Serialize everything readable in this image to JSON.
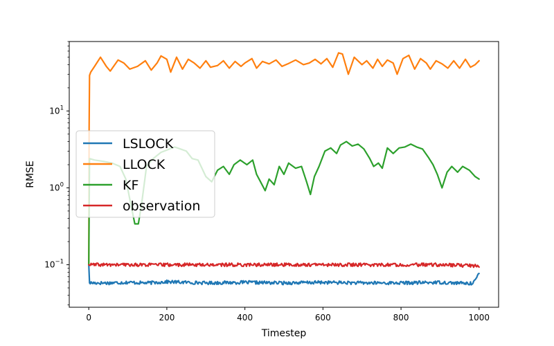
{
  "chart_data": {
    "type": "line",
    "title": "",
    "xlabel": "Timestep",
    "ylabel": "RMSE",
    "yscale": "log",
    "xlim": [
      -50,
      1050
    ],
    "ylim": [
      0.028,
      80
    ],
    "grid": false,
    "legend_position": "center-left",
    "x_ticks": [
      0,
      200,
      400,
      600,
      800,
      1000
    ],
    "x_tick_labels": [
      "0",
      "200",
      "400",
      "600",
      "800",
      "1000"
    ],
    "y_ticks": [
      {
        "value": 0.1,
        "base": "10",
        "exp": "−1"
      },
      {
        "value": 1,
        "base": "10",
        "exp": "0"
      },
      {
        "value": 10,
        "base": "10",
        "exp": "1"
      }
    ],
    "series": [
      {
        "name": "LSLOCK",
        "color": "#1f77b4",
        "points": [
          [
            0,
            0.1
          ],
          [
            2,
            0.058
          ],
          [
            50,
            0.058
          ],
          [
            100,
            0.059
          ],
          [
            150,
            0.058
          ],
          [
            200,
            0.06
          ],
          [
            300,
            0.058
          ],
          [
            400,
            0.059
          ],
          [
            500,
            0.058
          ],
          [
            600,
            0.059
          ],
          [
            700,
            0.058
          ],
          [
            800,
            0.058
          ],
          [
            900,
            0.059
          ],
          [
            980,
            0.057
          ],
          [
            992,
            0.065
          ],
          [
            1000,
            0.076
          ]
        ]
      },
      {
        "name": "LLOCK",
        "color": "#ff7f0e",
        "points": [
          [
            0,
            0.1
          ],
          [
            1,
            6
          ],
          [
            2,
            29
          ],
          [
            5,
            32
          ],
          [
            15,
            38
          ],
          [
            30,
            50
          ],
          [
            45,
            38
          ],
          [
            55,
            33
          ],
          [
            75,
            46
          ],
          [
            90,
            42
          ],
          [
            105,
            35
          ],
          [
            125,
            38
          ],
          [
            145,
            45
          ],
          [
            160,
            34
          ],
          [
            175,
            42
          ],
          [
            185,
            52
          ],
          [
            200,
            47
          ],
          [
            210,
            32
          ],
          [
            225,
            50
          ],
          [
            240,
            35
          ],
          [
            255,
            47
          ],
          [
            270,
            42
          ],
          [
            285,
            36
          ],
          [
            300,
            45
          ],
          [
            312,
            37
          ],
          [
            330,
            39
          ],
          [
            345,
            45
          ],
          [
            360,
            36
          ],
          [
            375,
            44
          ],
          [
            390,
            38
          ],
          [
            400,
            42
          ],
          [
            418,
            48
          ],
          [
            430,
            36
          ],
          [
            445,
            44
          ],
          [
            462,
            41
          ],
          [
            480,
            46
          ],
          [
            495,
            38
          ],
          [
            510,
            41
          ],
          [
            530,
            46
          ],
          [
            550,
            40
          ],
          [
            565,
            42
          ],
          [
            580,
            47
          ],
          [
            595,
            41
          ],
          [
            610,
            48
          ],
          [
            625,
            37
          ],
          [
            640,
            57
          ],
          [
            650,
            55
          ],
          [
            665,
            30
          ],
          [
            680,
            50
          ],
          [
            700,
            40
          ],
          [
            712,
            45
          ],
          [
            728,
            36
          ],
          [
            740,
            47
          ],
          [
            752,
            38
          ],
          [
            765,
            46
          ],
          [
            780,
            42
          ],
          [
            790,
            30
          ],
          [
            805,
            48
          ],
          [
            820,
            53
          ],
          [
            835,
            35
          ],
          [
            850,
            48
          ],
          [
            865,
            42
          ],
          [
            875,
            35
          ],
          [
            890,
            45
          ],
          [
            905,
            41
          ],
          [
            920,
            36
          ],
          [
            935,
            45
          ],
          [
            950,
            36
          ],
          [
            965,
            47
          ],
          [
            978,
            37
          ],
          [
            990,
            40
          ],
          [
            1000,
            45
          ]
        ]
      },
      {
        "name": "KF",
        "color": "#2ca02c",
        "points": [
          [
            0,
            0.1
          ],
          [
            2,
            2.4
          ],
          [
            15,
            2.3
          ],
          [
            40,
            2.2
          ],
          [
            60,
            2.1
          ],
          [
            80,
            1.9
          ],
          [
            95,
            1.3
          ],
          [
            108,
            0.6
          ],
          [
            118,
            0.34
          ],
          [
            127,
            0.34
          ],
          [
            135,
            0.6
          ],
          [
            148,
            1.9
          ],
          [
            165,
            2.4
          ],
          [
            185,
            2.9
          ],
          [
            200,
            3.1
          ],
          [
            220,
            3.4
          ],
          [
            235,
            3.2
          ],
          [
            250,
            3.0
          ],
          [
            265,
            2.4
          ],
          [
            280,
            2.3
          ],
          [
            290,
            1.8
          ],
          [
            300,
            1.4
          ],
          [
            315,
            1.2
          ],
          [
            330,
            1.7
          ],
          [
            345,
            1.9
          ],
          [
            360,
            1.5
          ],
          [
            372,
            2.0
          ],
          [
            388,
            2.3
          ],
          [
            405,
            2.0
          ],
          [
            420,
            2.3
          ],
          [
            430,
            1.5
          ],
          [
            440,
            1.2
          ],
          [
            452,
            0.92
          ],
          [
            462,
            1.3
          ],
          [
            475,
            1.1
          ],
          [
            488,
            1.9
          ],
          [
            500,
            1.5
          ],
          [
            512,
            2.1
          ],
          [
            530,
            1.8
          ],
          [
            545,
            1.9
          ],
          [
            558,
            1.2
          ],
          [
            568,
            0.82
          ],
          [
            578,
            1.4
          ],
          [
            590,
            1.9
          ],
          [
            605,
            3.0
          ],
          [
            620,
            3.3
          ],
          [
            635,
            2.8
          ],
          [
            645,
            3.6
          ],
          [
            660,
            4.0
          ],
          [
            675,
            3.5
          ],
          [
            690,
            3.7
          ],
          [
            705,
            3.2
          ],
          [
            720,
            2.4
          ],
          [
            730,
            1.9
          ],
          [
            742,
            2.1
          ],
          [
            752,
            1.8
          ],
          [
            765,
            3.3
          ],
          [
            780,
            2.8
          ],
          [
            795,
            3.3
          ],
          [
            810,
            3.4
          ],
          [
            825,
            3.7
          ],
          [
            840,
            3.4
          ],
          [
            855,
            3.2
          ],
          [
            870,
            2.5
          ],
          [
            882,
            2.0
          ],
          [
            893,
            1.5
          ],
          [
            905,
            1.0
          ],
          [
            918,
            1.6
          ],
          [
            930,
            1.9
          ],
          [
            945,
            1.6
          ],
          [
            958,
            1.9
          ],
          [
            975,
            1.7
          ],
          [
            990,
            1.4
          ],
          [
            1000,
            1.3
          ]
        ]
      },
      {
        "name": "observation",
        "color": "#d62728",
        "points": [
          [
            0,
            0.1
          ],
          [
            100,
            0.1
          ],
          [
            200,
            0.1
          ],
          [
            300,
            0.1
          ],
          [
            400,
            0.1
          ],
          [
            500,
            0.1
          ],
          [
            600,
            0.1
          ],
          [
            700,
            0.1
          ],
          [
            800,
            0.1
          ],
          [
            900,
            0.1
          ],
          [
            1000,
            0.097
          ]
        ]
      }
    ]
  }
}
